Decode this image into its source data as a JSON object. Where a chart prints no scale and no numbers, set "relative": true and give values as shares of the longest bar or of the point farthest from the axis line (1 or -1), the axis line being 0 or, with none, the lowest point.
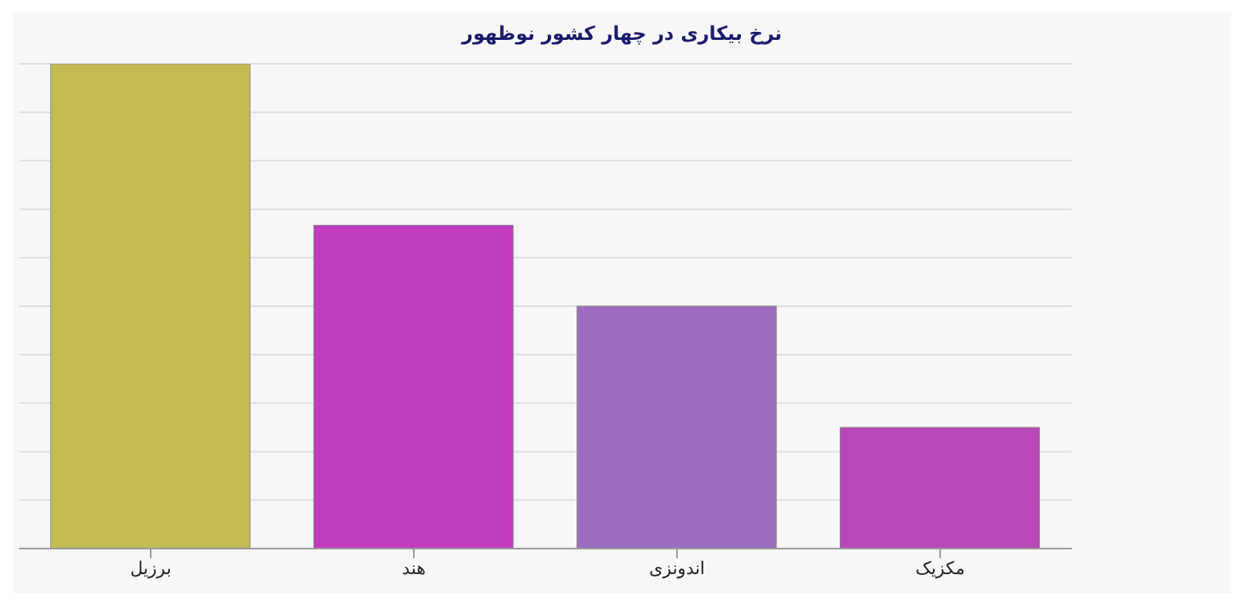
{
  "chart_data": {
    "type": "bar",
    "title": "نرخ بیکاری در چهار کشور نوظهور",
    "categories": [
      "برزیل",
      "هند",
      "اندونزی",
      "مکزیک"
    ],
    "values": [
      1,
      0.667,
      0.5,
      0.25
    ],
    "colors": [
      "#c4bb52",
      "#c23cc0",
      "#9e6cbe",
      "#b848b8"
    ],
    "relative": true,
    "grid": "y"
  }
}
